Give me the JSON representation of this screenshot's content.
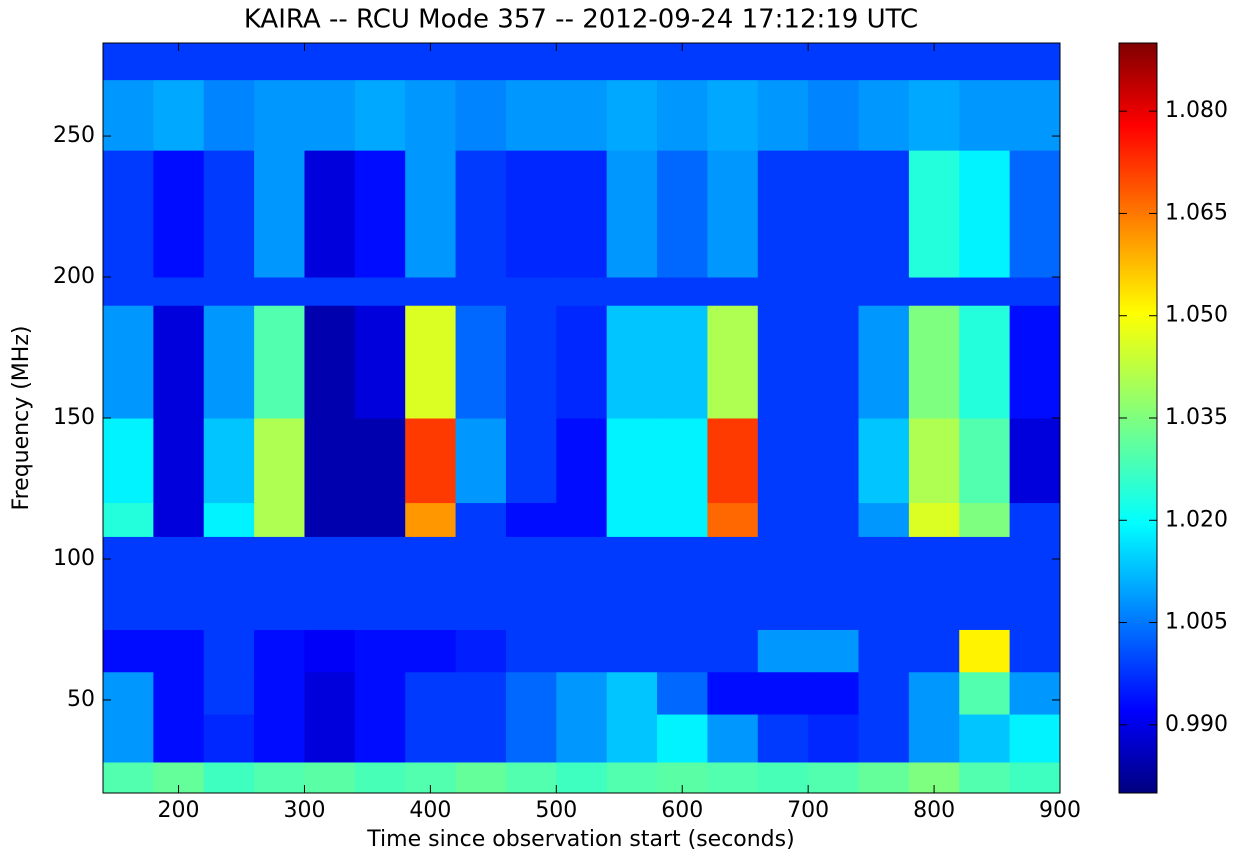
{
  "chart_data": {
    "type": "heatmap",
    "title": "KAIRA -- RCU Mode 357 -- 2012-09-24 17:12:19 UTC",
    "xlabel": "Time since observation start (seconds)",
    "ylabel": "Frequency (MHz)",
    "colormap": "jet",
    "xlim": [
      140,
      900
    ],
    "ylim": [
      17,
      283
    ],
    "xticks": [
      200,
      300,
      400,
      500,
      600,
      700,
      800,
      900
    ],
    "yticks": [
      50,
      100,
      150,
      200,
      250
    ],
    "clim": [
      0.98,
      1.09
    ],
    "cticks": [
      {
        "value": 0.99,
        "label": "0.990"
      },
      1.005,
      {
        "value": 1.02,
        "label": "1.020"
      },
      1.035,
      {
        "value": 1.05,
        "label": "1.050"
      },
      1.065,
      {
        "value": 1.08,
        "label": "1.080"
      }
    ],
    "x_edges": [
      140,
      180,
      220,
      260,
      300,
      340,
      380,
      420,
      460,
      500,
      540,
      580,
      620,
      660,
      700,
      740,
      780,
      820,
      860,
      900
    ],
    "y_edges": [
      17,
      28,
      45,
      60,
      75,
      108,
      120,
      150,
      190,
      200,
      245,
      270,
      283
    ],
    "z": [
      [
        1.03,
        1.032,
        1.028,
        1.03,
        1.031,
        1.029,
        1.03,
        1.032,
        1.03,
        1.028,
        1.03,
        1.031,
        1.03,
        1.029,
        1.03,
        1.032,
        1.035,
        1.03,
        1.028
      ],
      [
        1.01,
        0.995,
        0.998,
        0.995,
        0.99,
        0.995,
        1.0,
        1.0,
        1.005,
        1.01,
        1.015,
        1.02,
        1.01,
        1.0,
        0.998,
        1.0,
        1.01,
        1.015,
        1.02
      ],
      [
        1.01,
        0.995,
        1.0,
        0.995,
        0.99,
        0.995,
        1.0,
        1.0,
        1.005,
        1.01,
        1.015,
        1.005,
        0.995,
        0.995,
        0.995,
        1.0,
        1.01,
        1.03,
        1.01
      ],
      [
        0.995,
        0.995,
        1.0,
        0.995,
        0.993,
        0.995,
        0.995,
        0.997,
        1.0,
        1.0,
        1.0,
        1.0,
        1.0,
        1.01,
        1.01,
        1.0,
        1.0,
        1.05,
        1.0
      ],
      [
        1.0,
        1.0,
        1.0,
        1.0,
        1.0,
        1.0,
        1.0,
        1.0,
        1.0,
        1.0,
        1.0,
        1.0,
        1.0,
        1.0,
        1.0,
        1.0,
        1.0,
        1.0,
        1.0
      ],
      [
        1.025,
        0.99,
        1.02,
        1.04,
        0.985,
        0.985,
        1.06,
        1.0,
        0.995,
        0.995,
        1.02,
        1.02,
        1.065,
        1.0,
        1.0,
        1.01,
        1.045,
        1.035,
        1.0
      ],
      [
        1.02,
        0.99,
        1.015,
        1.04,
        0.985,
        0.985,
        1.07,
        1.01,
        1.0,
        0.995,
        1.02,
        1.02,
        1.07,
        1.0,
        1.0,
        1.015,
        1.04,
        1.03,
        0.99
      ],
      [
        1.01,
        0.99,
        1.01,
        1.03,
        0.985,
        0.99,
        1.045,
        1.005,
        1.0,
        0.998,
        1.015,
        1.015,
        1.04,
        1.0,
        1.0,
        1.01,
        1.035,
        1.025,
        0.995
      ],
      [
        1.0,
        1.0,
        1.0,
        1.0,
        1.0,
        1.0,
        1.0,
        1.0,
        1.0,
        1.0,
        1.0,
        1.0,
        1.0,
        1.0,
        1.0,
        1.0,
        1.0,
        1.0,
        1.0
      ],
      [
        1.0,
        0.995,
        1.0,
        1.01,
        0.99,
        0.995,
        1.01,
        1.0,
        0.998,
        0.998,
        1.01,
        1.005,
        1.01,
        1.0,
        1.0,
        1.0,
        1.025,
        1.02,
        1.005
      ],
      [
        1.01,
        1.012,
        1.008,
        1.01,
        1.01,
        1.012,
        1.01,
        1.008,
        1.01,
        1.01,
        1.012,
        1.01,
        1.012,
        1.01,
        1.008,
        1.01,
        1.012,
        1.01,
        1.01
      ],
      [
        1.0,
        1.0,
        1.0,
        1.0,
        1.0,
        1.0,
        1.0,
        1.0,
        1.0,
        1.0,
        1.0,
        1.0,
        1.0,
        1.0,
        1.0,
        1.0,
        1.0,
        1.0,
        1.0
      ]
    ]
  }
}
